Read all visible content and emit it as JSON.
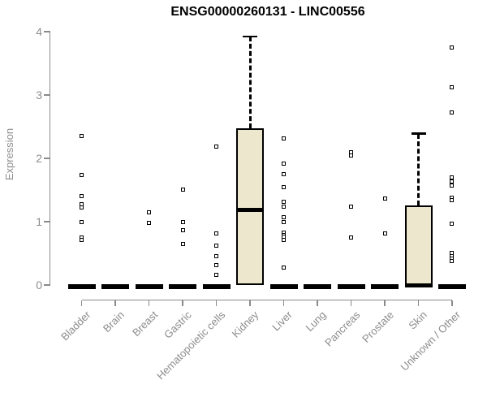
{
  "title": "ENSG00000260131 - LINC00556",
  "y_axis": {
    "label": "Expression",
    "ticks": [
      "0",
      "1",
      "2",
      "3",
      "4"
    ],
    "range": [
      0,
      4
    ]
  },
  "x_axis": {
    "categories": [
      "Bladder",
      "Brain",
      "Breast",
      "Gastric",
      "Hematopoietic cells",
      "Kidney",
      "Liver",
      "Lung",
      "Pancreas",
      "Prostate",
      "Skin",
      "Unknown / Other"
    ]
  },
  "colors": {
    "box_fill": "#ece7cd",
    "box_stroke": "#000000",
    "axis": "#8a8a8a",
    "label_text": "#8c8c8c",
    "title_text": "#000000",
    "background": "#ffffff"
  },
  "chart_data": {
    "type": "boxplot",
    "title": "ENSG00000260131 - LINC00556",
    "xlabel": "",
    "ylabel": "Expression",
    "ylim": [
      0,
      4
    ],
    "grid": false,
    "categories": [
      "Bladder",
      "Brain",
      "Breast",
      "Gastric",
      "Hematopoietic cells",
      "Kidney",
      "Liver",
      "Lung",
      "Pancreas",
      "Prostate",
      "Skin",
      "Unknown / Other"
    ],
    "boxes": [
      {
        "category": "Bladder",
        "q1": 0,
        "median": 0,
        "q3": 0,
        "whisker_low": 0,
        "whisker_high": 0,
        "outliers": [
          2.35,
          1.74,
          1.41,
          1.27,
          1.23,
          0.99,
          0.75,
          0.71
        ]
      },
      {
        "category": "Brain",
        "q1": 0,
        "median": 0,
        "q3": 0,
        "whisker_low": 0,
        "whisker_high": 0,
        "outliers": []
      },
      {
        "category": "Breast",
        "q1": 0,
        "median": 0,
        "q3": 0,
        "whisker_low": 0,
        "whisker_high": 0,
        "outliers": [
          1.15,
          0.98
        ]
      },
      {
        "category": "Gastric",
        "q1": 0,
        "median": 0,
        "q3": 0,
        "whisker_low": 0,
        "whisker_high": 0,
        "outliers": [
          1.51,
          1.0,
          0.86,
          0.65
        ]
      },
      {
        "category": "Hematopoietic cells",
        "q1": 0,
        "median": 0,
        "q3": 0,
        "whisker_low": 0,
        "whisker_high": 0,
        "outliers": [
          2.18,
          0.82,
          0.62,
          0.46,
          0.31,
          0.16
        ]
      },
      {
        "category": "Kidney",
        "q1": 0,
        "median": 1.18,
        "q3": 2.47,
        "whisker_low": 0,
        "whisker_high": 3.92,
        "outliers": []
      },
      {
        "category": "Liver",
        "q1": 0,
        "median": 0,
        "q3": 0,
        "whisker_low": 0,
        "whisker_high": 0,
        "outliers": [
          2.31,
          1.92,
          1.75,
          1.55,
          1.31,
          1.24,
          1.07,
          0.99,
          0.83,
          0.79,
          0.76,
          0.71,
          0.27
        ]
      },
      {
        "category": "Lung",
        "q1": 0,
        "median": 0,
        "q3": 0,
        "whisker_low": 0,
        "whisker_high": 0,
        "outliers": []
      },
      {
        "category": "Pancreas",
        "q1": 0,
        "median": 0,
        "q3": 0,
        "whisker_low": 0,
        "whisker_high": 0,
        "outliers": [
          2.09,
          2.05,
          1.24,
          0.75
        ]
      },
      {
        "category": "Prostate",
        "q1": 0,
        "median": 0,
        "q3": 0,
        "whisker_low": 0,
        "whisker_high": 0,
        "outliers": [
          1.37,
          0.82
        ]
      },
      {
        "category": "Skin",
        "q1": 0,
        "median": 0,
        "q3": 1.26,
        "whisker_low": 0,
        "whisker_high": 2.39,
        "outliers": []
      },
      {
        "category": "Unknown / Other",
        "q1": 0,
        "median": 0,
        "q3": 0,
        "whisker_low": 0,
        "whisker_high": 0,
        "outliers": [
          3.75,
          3.12,
          2.72,
          1.7,
          1.64,
          1.57,
          1.38,
          1.34,
          0.97,
          0.51,
          0.46,
          0.42,
          0.38
        ]
      }
    ]
  }
}
